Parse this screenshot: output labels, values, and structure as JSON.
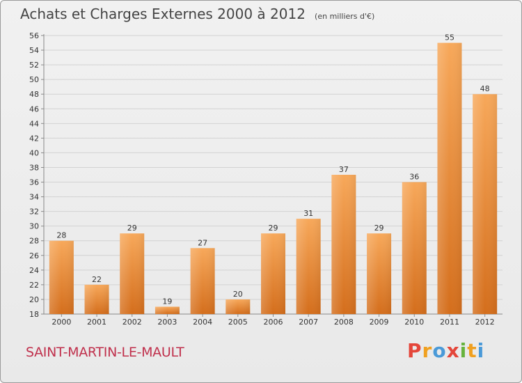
{
  "header": {
    "title": "Achats et Charges Externes 2000 à 2012",
    "unit": "(en milliers d'€)"
  },
  "footer": {
    "commune": "SAINT-MARTIN-LE-MAULT",
    "logo_letters": [
      "P",
      "r",
      "o",
      "x",
      "i",
      "t",
      "i"
    ],
    "logo_colors": [
      "#e4463a",
      "#f0a020",
      "#4a9ad8",
      "#e4463a",
      "#67b33d",
      "#f0a020",
      "#4a9ad8"
    ]
  },
  "colors": {
    "bar_light": "#f7a85a",
    "bar_dark": "#d46e1c",
    "grid": "#d2d2d2",
    "axis": "#888888",
    "text": "#333333",
    "commune": "#c0304c"
  },
  "chart_data": {
    "type": "bar",
    "title": "Achats et Charges Externes 2000 à 2012",
    "subtitle": "(en milliers d'€)",
    "categories": [
      "2000",
      "2001",
      "2002",
      "2003",
      "2004",
      "2005",
      "2006",
      "2007",
      "2008",
      "2009",
      "2010",
      "2011",
      "2012"
    ],
    "values": [
      28,
      22,
      29,
      19,
      27,
      20,
      29,
      31,
      37,
      29,
      36,
      55,
      48
    ],
    "data_labels": [
      "28",
      "22",
      "29",
      "19",
      "27",
      "20",
      "29",
      "31",
      "37",
      "29",
      "36",
      "55",
      "48"
    ],
    "ylim": [
      18,
      56
    ],
    "yticks": [
      "18",
      "20",
      "22",
      "24",
      "26",
      "28",
      "30",
      "32",
      "34",
      "36",
      "38",
      "40",
      "42",
      "44",
      "46",
      "48",
      "50",
      "52",
      "54",
      "56"
    ],
    "grid": true,
    "xlabel": "",
    "ylabel": ""
  }
}
